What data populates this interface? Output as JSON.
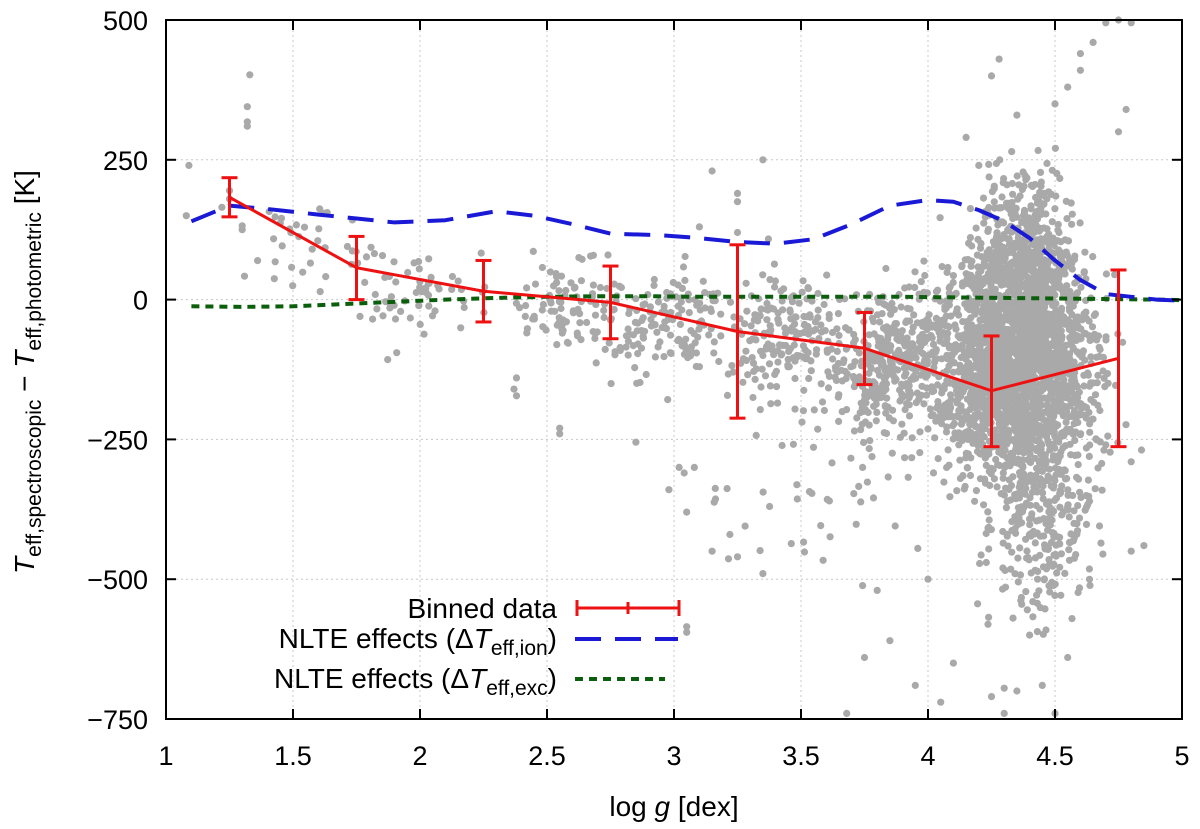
{
  "chart_data": {
    "type": "scatter",
    "xlabel_prefix": "log ",
    "xlabel_var": "g",
    "xlabel_suffix": " [dex]",
    "ylabel_var": "T",
    "ylabel_sub1": "eff,spectroscopic",
    "ylabel_minus": " − ",
    "ylabel_sub2": "eff,photometric",
    "ylabel_unit": " [K]",
    "xlim": [
      1,
      5
    ],
    "ylim": [
      -750,
      500
    ],
    "xticks": [
      1,
      1.5,
      2,
      2.5,
      3,
      3.5,
      4,
      4.5,
      5
    ],
    "xtick_labels": [
      "1",
      "1.5",
      "2",
      "2.5",
      "3",
      "3.5",
      "4",
      "4.5",
      "5"
    ],
    "yticks": [
      -750,
      -500,
      -250,
      0,
      250,
      500
    ],
    "ytick_labels": [
      "−750",
      "−500",
      "−250",
      "0",
      "250",
      "500"
    ],
    "grid": true,
    "legend_position": "bottom-left",
    "legend": {
      "binned": "Binned data",
      "nlte_prefix": "NLTE effects (",
      "delta": "Δ",
      "T": "T",
      "ion_sub": "eff,ion",
      "exc_sub": "eff,exc",
      "close": ")"
    },
    "colors": {
      "scatter": "#a9a9a9",
      "binned": "#ee1111",
      "ion": "#1a1ad6",
      "exc": "#0b5e0b"
    },
    "series": [
      {
        "name": "Binned data",
        "type": "line_errorbar",
        "x": [
          1.25,
          1.75,
          2.25,
          2.75,
          3.25,
          3.75,
          4.25,
          4.75
        ],
        "y": [
          183,
          57,
          15,
          -5,
          -57,
          -87,
          -163,
          -105
        ],
        "err_low": [
          148,
          0,
          -40,
          -70,
          -212,
          -152,
          -263,
          -263
        ],
        "err_high": [
          218,
          113,
          70,
          60,
          98,
          -23,
          -65,
          53
        ]
      },
      {
        "name": "NLTE effects (ΔTeff,ion)",
        "type": "line_dashed",
        "x": [
          1.1,
          1.25,
          1.4,
          1.6,
          1.75,
          1.9,
          2.1,
          2.3,
          2.45,
          2.6,
          2.75,
          2.95,
          3.1,
          3.25,
          3.4,
          3.55,
          3.7,
          3.85,
          4.0,
          4.1,
          4.2,
          4.3,
          4.4,
          4.5,
          4.6,
          4.7,
          4.8,
          4.9,
          5.0
        ],
        "y": [
          140,
          168,
          162,
          152,
          145,
          138,
          142,
          158,
          150,
          135,
          118,
          115,
          110,
          103,
          100,
          108,
          135,
          168,
          178,
          175,
          160,
          140,
          110,
          70,
          35,
          10,
          5,
          0,
          -2
        ]
      },
      {
        "name": "NLTE effects (ΔTeff,exc)",
        "type": "line_dotted",
        "x": [
          1.1,
          1.3,
          1.5,
          1.7,
          1.9,
          2.1,
          2.3,
          2.5,
          2.7,
          2.9,
          3.1,
          3.3,
          3.5,
          3.7,
          3.9,
          4.1,
          4.3,
          4.5,
          4.7,
          4.9,
          5.0
        ],
        "y": [
          -12,
          -13,
          -12,
          -8,
          -4,
          0,
          3,
          5,
          6,
          6,
          5,
          5,
          5,
          5,
          5,
          4,
          3,
          2,
          1,
          0,
          -1
        ]
      }
    ],
    "scatter_clusters": [
      {
        "cx": 4.35,
        "cy": -120,
        "sx": 0.22,
        "sy": 150,
        "n": 2200
      },
      {
        "cx": 4.4,
        "cy": 60,
        "sx": 0.12,
        "sy": 140,
        "n": 500
      },
      {
        "cx": 4.45,
        "cy": -420,
        "sx": 0.14,
        "sy": 110,
        "n": 220
      },
      {
        "cx": 3.85,
        "cy": -110,
        "sx": 0.15,
        "sy": 90,
        "n": 350
      },
      {
        "cx": 3.45,
        "cy": -70,
        "sx": 0.18,
        "sy": 80,
        "n": 180
      },
      {
        "cx": 3.0,
        "cy": -40,
        "sx": 0.18,
        "sy": 75,
        "n": 130
      },
      {
        "cx": 2.6,
        "cy": -10,
        "sx": 0.2,
        "sy": 55,
        "n": 100
      },
      {
        "cx": 2.0,
        "cy": 5,
        "sx": 0.2,
        "sy": 60,
        "n": 60
      },
      {
        "cx": 1.55,
        "cy": 110,
        "sx": 0.18,
        "sy": 60,
        "n": 35
      },
      {
        "cx": 3.6,
        "cy": -330,
        "sx": 0.3,
        "sy": 110,
        "n": 45
      }
    ],
    "scatter_points": [
      [
        1.33,
        402
      ],
      [
        1.32,
        345
      ],
      [
        1.32,
        318
      ],
      [
        1.32,
        310
      ],
      [
        1.09,
        240
      ],
      [
        1.08,
        150
      ],
      [
        1.25,
        195
      ],
      [
        1.25,
        180
      ],
      [
        1.22,
        165
      ],
      [
        1.3,
        125
      ],
      [
        1.3,
        132
      ],
      [
        2.38,
        -140
      ],
      [
        2.37,
        -160
      ],
      [
        2.38,
        -172
      ],
      [
        2.55,
        -230
      ],
      [
        2.55,
        -240
      ],
      [
        2.85,
        -255
      ],
      [
        2.98,
        -340
      ],
      [
        3.02,
        -300
      ],
      [
        3.04,
        -310
      ],
      [
        3.08,
        -300
      ],
      [
        3.05,
        -380
      ],
      [
        3.1,
        -120
      ],
      [
        3.15,
        230
      ],
      [
        3.25,
        190
      ],
      [
        3.25,
        175
      ],
      [
        3.35,
        250
      ],
      [
        3.15,
        -450
      ],
      [
        3.22,
        -420
      ],
      [
        3.28,
        -405
      ],
      [
        3.25,
        -460
      ],
      [
        3.35,
        -490
      ],
      [
        3.75,
        -640
      ],
      [
        3.8,
        -520
      ],
      [
        3.85,
        -610
      ],
      [
        3.95,
        -690
      ],
      [
        4.05,
        -720
      ],
      [
        4.1,
        -650
      ],
      [
        4.25,
        -710
      ],
      [
        4.3,
        -695
      ],
      [
        4.3,
        -740
      ],
      [
        4.35,
        -700
      ],
      [
        4.45,
        -690
      ],
      [
        4.5,
        -740
      ],
      [
        4.55,
        -640
      ],
      [
        4.4,
        -600
      ],
      [
        3.96,
        -445
      ],
      [
        4.0,
        -500
      ],
      [
        3.05,
        -585
      ],
      [
        3.05,
        -595
      ],
      [
        3.68,
        -740
      ],
      [
        4.25,
        400
      ],
      [
        4.28,
        430
      ],
      [
        4.35,
        330
      ],
      [
        4.5,
        350
      ],
      [
        4.55,
        380
      ],
      [
        4.6,
        410
      ],
      [
        4.6,
        440
      ],
      [
        4.65,
        460
      ],
      [
        4.7,
        495
      ],
      [
        4.75,
        500
      ],
      [
        4.8,
        495
      ],
      [
        4.78,
        340
      ],
      [
        4.75,
        300
      ],
      [
        4.15,
        290
      ],
      [
        4.2,
        240
      ],
      [
        3.25,
        120
      ],
      [
        3.1,
        130
      ],
      [
        4.8,
        -450
      ],
      [
        4.8,
        -290
      ],
      [
        4.85,
        -440
      ]
    ]
  }
}
